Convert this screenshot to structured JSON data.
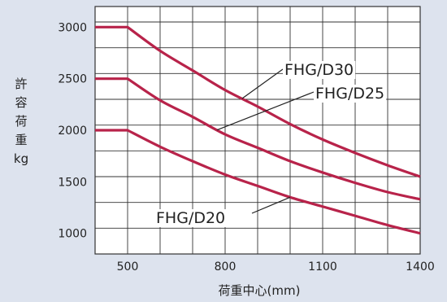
{
  "chart_data": {
    "type": "line",
    "title": "",
    "xlabel": "荷重中心(mm)",
    "ylabel": "許容荷重kg",
    "ylabel_chars": [
      "許",
      "容",
      "荷",
      "重",
      "kg"
    ],
    "xlim": [
      400,
      1400
    ],
    "ylim": [
      800,
      3200
    ],
    "x_ticks": [
      500,
      800,
      1100,
      1400
    ],
    "y_ticks": [
      1000,
      1500,
      2000,
      2500,
      3000
    ],
    "grid": true,
    "line_color": "#b8234a",
    "grid_color": "#333333",
    "plot_background": "#ffffff",
    "series": [
      {
        "name": "FHG/D30",
        "x": [
          400,
          500,
          600,
          700,
          800,
          900,
          1000,
          1100,
          1200,
          1300,
          1400
        ],
        "y": [
          3000,
          3000,
          2770,
          2580,
          2390,
          2230,
          2060,
          1910,
          1780,
          1660,
          1550
        ]
      },
      {
        "name": "FHG/D25",
        "x": [
          400,
          500,
          600,
          700,
          800,
          900,
          1000,
          1100,
          1200,
          1300,
          1400
        ],
        "y": [
          2500,
          2500,
          2290,
          2130,
          1960,
          1830,
          1700,
          1590,
          1490,
          1400,
          1330
        ]
      },
      {
        "name": "FHG/D20",
        "x": [
          400,
          500,
          600,
          700,
          800,
          900,
          1000,
          1100,
          1200,
          1300,
          1400
        ],
        "y": [
          2000,
          2000,
          1840,
          1700,
          1570,
          1460,
          1350,
          1260,
          1170,
          1080,
          1000
        ]
      }
    ]
  }
}
